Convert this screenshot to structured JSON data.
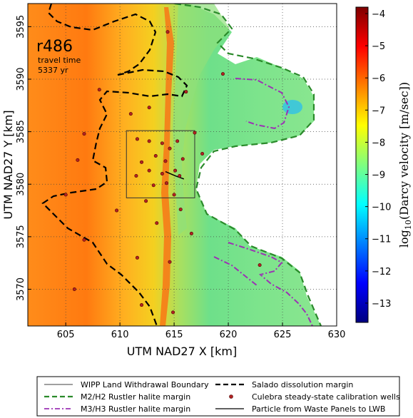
{
  "chart_data": {
    "type": "heatmap",
    "title": "",
    "xlabel": "UTM NAD27 X [km]",
    "ylabel": "UTM NAD27 Y [km]",
    "xlim": [
      601.5,
      630
    ],
    "ylim": [
      3566.5,
      3597.2
    ],
    "x_ticks": [
      605,
      610,
      615,
      620,
      625,
      630
    ],
    "y_ticks": [
      3570,
      3575,
      3580,
      3585,
      3590,
      3595
    ],
    "grid": true,
    "annotation": {
      "run_id": "r486",
      "travel_time_label": "travel time",
      "travel_time_value": "5337 yr"
    },
    "colorbar": {
      "label": "log10(Darcy velocity [m/sec])",
      "label_main": "log",
      "label_sub": "10",
      "label_rest": "(Darcy velocity [m/sec])",
      "range": [
        -13.6,
        -3.8
      ],
      "ticks": [
        -13,
        -12,
        -11,
        -10,
        -9,
        -8,
        -7,
        -6,
        -5,
        -4
      ],
      "tick_labels": [
        "−13",
        "−12",
        "−11",
        "−10",
        "−9",
        "−8",
        "−7",
        "−6",
        "−5",
        "−4"
      ],
      "colormap": "jet"
    },
    "wipp_boundary": {
      "x": [
        610.6,
        616.9
      ],
      "y": [
        3578.7,
        3585.1
      ]
    },
    "wells": [
      [
        614.4,
        3594.5
      ],
      [
        608.1,
        3589.0
      ],
      [
        611.0,
        3586.7
      ],
      [
        612.7,
        3587.3
      ],
      [
        616.1,
        3588.8
      ],
      [
        619.5,
        3590.5
      ],
      [
        606.7,
        3584.8
      ],
      [
        606.1,
        3582.3
      ],
      [
        605.0,
        3579.0
      ],
      [
        606.7,
        3574.7
      ],
      [
        609.7,
        3577.5
      ],
      [
        605.8,
        3570.0
      ],
      [
        611.6,
        3584.3
      ],
      [
        612.7,
        3584.1
      ],
      [
        613.9,
        3583.9
      ],
      [
        614.6,
        3583.4
      ],
      [
        615.3,
        3584.1
      ],
      [
        613.3,
        3582.7
      ],
      [
        614.2,
        3582.2
      ],
      [
        612.0,
        3582.1
      ],
      [
        615.8,
        3582.4
      ],
      [
        612.7,
        3581.3
      ],
      [
        613.9,
        3581.0
      ],
      [
        615.1,
        3581.3
      ],
      [
        611.5,
        3580.8
      ],
      [
        613.1,
        3579.9
      ],
      [
        614.3,
        3580.1
      ],
      [
        615.5,
        3580.8
      ],
      [
        612.4,
        3578.4
      ],
      [
        615.0,
        3579.0
      ],
      [
        615.6,
        3577.6
      ],
      [
        616.6,
        3575.3
      ],
      [
        617.6,
        3582.9
      ],
      [
        616.9,
        3584.9
      ],
      [
        622.9,
        3572.3
      ],
      [
        611.6,
        3573.0
      ],
      [
        614.9,
        3567.8
      ],
      [
        612.0,
        3568.5
      ],
      [
        613.4,
        3576.3
      ],
      [
        614.6,
        3572.6
      ]
    ],
    "particle_path": [
      [
        614.2,
        3581.2
      ],
      [
        615.1,
        3580.8
      ],
      [
        615.9,
        3580.5
      ]
    ],
    "legend": [
      {
        "label": "WIPP Land Withdrawal Boundary",
        "style": "thin-solid",
        "color": "#000000"
      },
      {
        "label": "Salado dissolution margin",
        "style": "dashed",
        "color": "#000000"
      },
      {
        "label": "M2/H2 Rustler halite margin",
        "style": "dashed",
        "color": "#2a8a2a"
      },
      {
        "label": "Culebra steady-state calibration wells",
        "style": "dot",
        "color": "#b22222"
      },
      {
        "label": "M3/H3 Rustler halite margin",
        "style": "dash-dot",
        "color": "#9b32b4"
      },
      {
        "label": "Particle from Waste Panels to LWB",
        "style": "solid",
        "color": "#000000"
      }
    ]
  }
}
